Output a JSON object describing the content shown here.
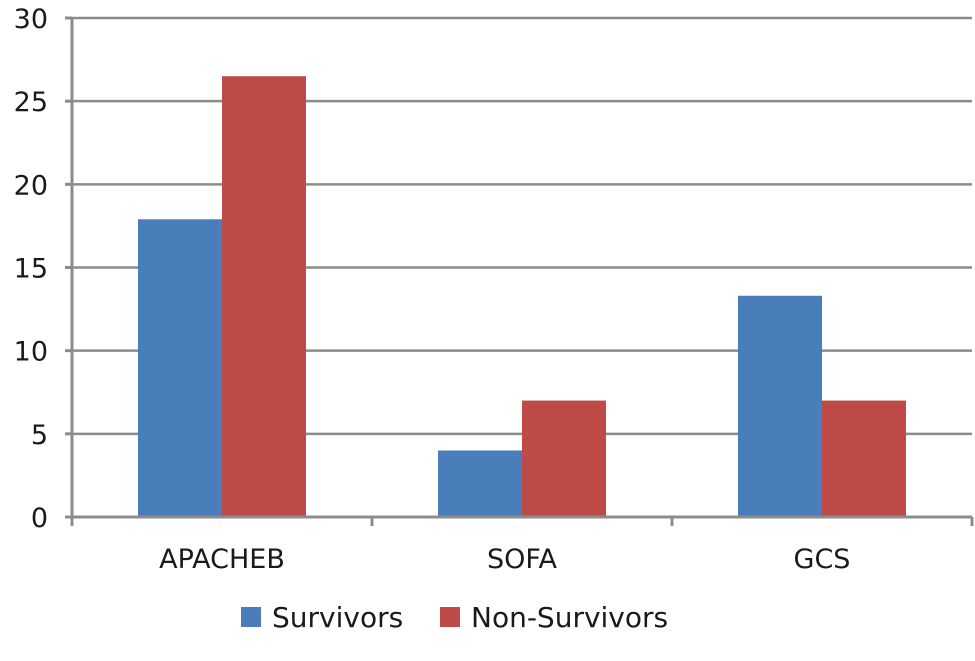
{
  "chart_data": {
    "type": "bar",
    "categories": [
      "APACHEB",
      "SOFA",
      "GCS"
    ],
    "series": [
      {
        "name": "Survivors",
        "color": "#4a7ebb",
        "values": [
          17.9,
          4.0,
          13.3
        ]
      },
      {
        "name": "Non-Survivors",
        "color": "#be4b48",
        "values": [
          26.5,
          7.0,
          7.0
        ]
      }
    ],
    "title": "",
    "xlabel": "",
    "ylabel": "",
    "ylim": [
      0,
      30
    ],
    "yticks": [
      0,
      5,
      10,
      15,
      20,
      25,
      30
    ],
    "grid": true,
    "legend_position": "bottom"
  }
}
